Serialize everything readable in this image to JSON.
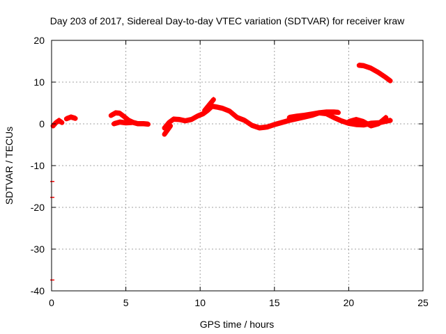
{
  "chart_data": {
    "type": "line",
    "title": "Day 203 of 2017, Sidereal Day-to-day VTEC variation (SDTVAR) for receiver kraw",
    "xlabel": "GPS time / hours",
    "ylabel": "SDTVAR / TECUs",
    "xlim": [
      0,
      25
    ],
    "ylim": [
      -40,
      20
    ],
    "xticks": [
      "0",
      "5",
      "10",
      "15",
      "20",
      "25"
    ],
    "yticks": [
      "20",
      "10",
      "0",
      "-10",
      "-20",
      "-30",
      "-40"
    ],
    "grid": true,
    "series_color": "#ff0000",
    "series": [
      {
        "name": "SDTVAR",
        "segments": [
          {
            "x": [
              0.1,
              0.3,
              0.5,
              0.7
            ],
            "y": [
              -0.5,
              0.3,
              0.8,
              0.3
            ]
          },
          {
            "x": [
              1.0,
              1.3,
              1.6
            ],
            "y": [
              1.2,
              1.6,
              1.3
            ]
          },
          {
            "x": [
              4.0,
              4.3,
              4.6,
              4.9,
              5.2,
              5.5,
              5.8,
              6.2,
              6.5
            ],
            "y": [
              2.0,
              2.6,
              2.5,
              1.7,
              0.8,
              0.3,
              0.0,
              0.0,
              -0.1
            ]
          },
          {
            "x": [
              4.2,
              4.6,
              5.0,
              5.4
            ],
            "y": [
              0.0,
              0.4,
              0.2,
              0.3
            ]
          },
          {
            "x": [
              7.6,
              7.9,
              8.2,
              8.6,
              9.0,
              9.4,
              9.8,
              10.2,
              10.5,
              10.8,
              11.1,
              11.5,
              12.0,
              12.5,
              13.0,
              13.5,
              14.0,
              14.5,
              15.0,
              15.5,
              16.0,
              16.5,
              17.0,
              17.5,
              18.0,
              18.5,
              19.0,
              19.5,
              20.0,
              20.5,
              21.0,
              21.5,
              22.0,
              22.5,
              22.8
            ],
            "y": [
              -1.0,
              0.3,
              1.1,
              1.0,
              0.7,
              1.0,
              1.8,
              2.4,
              3.2,
              4.2,
              4.0,
              3.7,
              3.0,
              1.5,
              0.8,
              -0.4,
              -1.0,
              -0.8,
              -0.2,
              0.3,
              0.8,
              1.2,
              1.6,
              2.0,
              2.6,
              2.4,
              1.5,
              0.7,
              0.1,
              -0.2,
              -0.3,
              0.1,
              0.2,
              0.6,
              0.8
            ]
          },
          {
            "x": [
              7.6,
              7.8,
              8.0
            ],
            "y": [
              -2.5,
              -1.5,
              -0.5
            ]
          },
          {
            "x": [
              10.3,
              10.6,
              10.9
            ],
            "y": [
              3.2,
              4.5,
              5.8
            ]
          },
          {
            "x": [
              16.0,
              16.5,
              17.0,
              17.5,
              18.0,
              18.5,
              19.0,
              19.3
            ],
            "y": [
              1.5,
              1.8,
              2.0,
              2.3,
              2.6,
              2.8,
              2.8,
              2.7
            ]
          },
          {
            "x": [
              20.0,
              20.5,
              21.0,
              21.5,
              22.0,
              22.5
            ],
            "y": [
              0.5,
              1.0,
              0.5,
              -0.5,
              0.0,
              1.5
            ]
          },
          {
            "x": [
              20.7,
              21.0,
              21.5,
              22.0,
              22.5,
              22.8
            ],
            "y": [
              14.0,
              13.9,
              13.3,
              12.3,
              11.1,
              10.3
            ]
          }
        ],
        "outliers": [
          {
            "x": 0.05,
            "y": -13.8
          },
          {
            "x": 0.05,
            "y": -17.6
          },
          {
            "x": 0.05,
            "y": -37.4
          }
        ]
      }
    ]
  }
}
